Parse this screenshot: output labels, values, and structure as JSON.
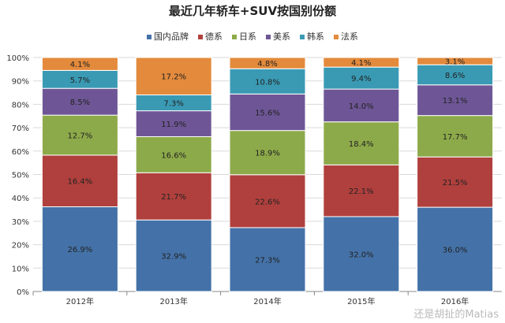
{
  "chart_data": {
    "type": "bar",
    "stacked": true,
    "normalized": true,
    "title": "最近几年轿车+SUV按国别份额",
    "categories": [
      "2012年",
      "2013年",
      "2014年",
      "2015年",
      "2016年"
    ],
    "yticks": [
      "0%",
      "10%",
      "20%",
      "30%",
      "40%",
      "50%",
      "60%",
      "70%",
      "80%",
      "90%",
      "100%"
    ],
    "ylim": [
      0,
      100
    ],
    "legend": "top",
    "grid": true,
    "series": [
      {
        "name": "国内品牌",
        "color": "#4472a8",
        "values": [
          26.9,
          32.9,
          27.3,
          32.0,
          36.0
        ]
      },
      {
        "name": "德系",
        "color": "#b0403d",
        "values": [
          16.4,
          21.7,
          22.6,
          22.1,
          21.5
        ]
      },
      {
        "name": "日系",
        "color": "#8daa4a",
        "values": [
          12.7,
          16.6,
          18.9,
          18.4,
          17.7
        ]
      },
      {
        "name": "美系",
        "color": "#6e5696",
        "values": [
          8.5,
          11.9,
          15.6,
          14.0,
          13.1
        ]
      },
      {
        "name": "韩系",
        "color": "#3a9ab4",
        "values": [
          5.7,
          7.3,
          10.8,
          9.4,
          8.6
        ]
      },
      {
        "name": "法系",
        "color": "#e38a3c",
        "values": [
          4.1,
          17.2,
          4.8,
          4.1,
          3.1
        ]
      }
    ]
  },
  "watermark": "还是胡扯的Matias"
}
